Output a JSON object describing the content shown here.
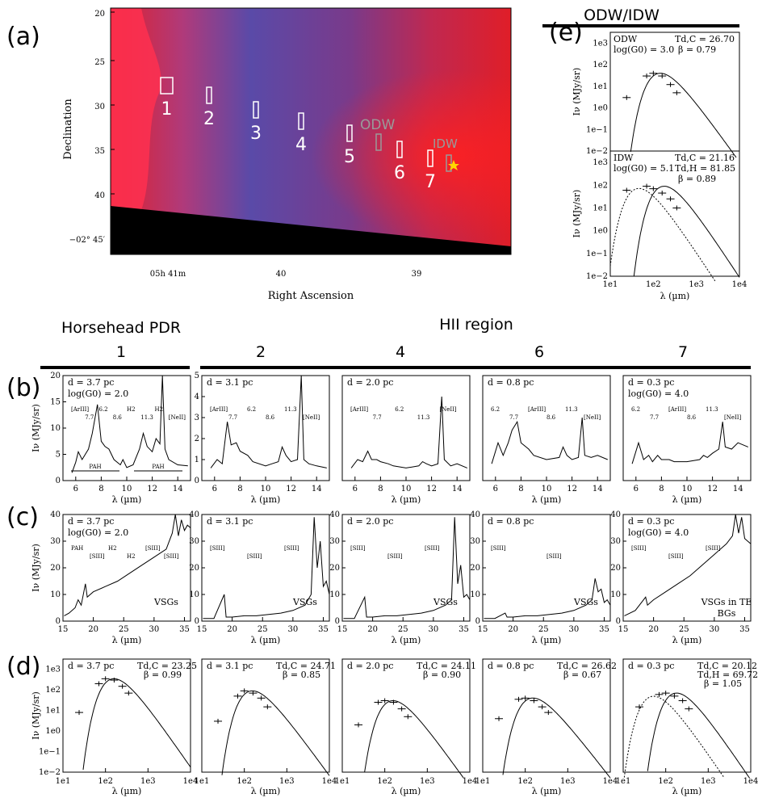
{
  "panel_letters": {
    "a": "(a)",
    "b": "(b)",
    "c": "(c)",
    "d": "(d)",
    "e": "(e)"
  },
  "image_panel": {
    "ylabel": "Declination",
    "xlabel": "Right Ascension",
    "y_ticks": [
      "20",
      "25",
      "30",
      "35",
      "40",
      "−02° 45′"
    ],
    "x_ticks": [
      "05h 41m",
      "40",
      "39"
    ],
    "region_labels": [
      "1",
      "2",
      "3",
      "4",
      "5",
      "6",
      "7"
    ],
    "odw_label": "ODW",
    "idw_label": "IDW"
  },
  "headers": {
    "pdr": "Horsehead PDR",
    "hii": "HII region",
    "numbers": [
      "1",
      "2",
      "4",
      "6",
      "7"
    ],
    "odw_idw": "ODW/IDW"
  },
  "colors": {
    "nebula_red": "#e0202a",
    "nebula_blue": "#6a5bb0",
    "odw_box": "#9a9a9a",
    "star": "#ffd700"
  },
  "chart_data": [
    {
      "type": "line",
      "title": "(b) mid-IR spectra 5-15 µm",
      "xlabel": "λ (µm)",
      "ylabel": "Iν (MJy/sr)",
      "xlim": [
        5,
        15
      ],
      "x_ticks": [
        "6",
        "8",
        "10",
        "12",
        "14"
      ],
      "panels": [
        {
          "d": "d = 3.7 pc",
          "g0": "log(G0) = 2.0",
          "ylim": [
            0,
            20
          ],
          "y_ticks": [
            "0",
            "5",
            "10",
            "15",
            "20"
          ],
          "lines": [
            "[ArIII]",
            "7.7",
            "6.2",
            "8.6",
            "H2",
            "11.3",
            "H2",
            "[NeII]"
          ],
          "bars": [
            "PAH",
            "PAH"
          ],
          "x": [
            5.7,
            6.0,
            6.2,
            6.5,
            7.0,
            7.3,
            7.7,
            8.0,
            8.3,
            8.6,
            9.0,
            9.5,
            9.7,
            10.0,
            10.5,
            11.0,
            11.3,
            11.6,
            12.0,
            12.3,
            12.6,
            12.8,
            13.0,
            13.3,
            14.0,
            14.8
          ],
          "y": [
            1.5,
            3.5,
            5.5,
            4.0,
            6.0,
            9.0,
            14.5,
            7.5,
            6.5,
            6.0,
            4.0,
            3.0,
            4.0,
            2.5,
            3.0,
            6.0,
            9.0,
            6.5,
            5.5,
            8.0,
            7.0,
            20.0,
            6.0,
            4.0,
            3.0,
            2.8
          ]
        },
        {
          "d": "d = 3.1 pc",
          "ylim": [
            0,
            5
          ],
          "y_ticks": [
            "0",
            "1",
            "2",
            "3",
            "4",
            "5"
          ],
          "lines": [
            "[ArIII]",
            "7.7",
            "6.2",
            "8.6",
            "11.3",
            "[NeII]"
          ],
          "x": [
            5.7,
            6.2,
            6.6,
            7.0,
            7.3,
            7.7,
            8.0,
            8.6,
            9.0,
            10.0,
            10.5,
            11.0,
            11.3,
            11.6,
            12.0,
            12.5,
            12.8,
            13.0,
            13.4,
            14.0,
            14.8
          ],
          "y": [
            0.6,
            1.0,
            0.8,
            2.8,
            1.7,
            1.8,
            1.4,
            1.2,
            0.9,
            0.7,
            0.8,
            0.9,
            1.6,
            1.2,
            0.9,
            1.0,
            5.0,
            1.0,
            0.8,
            0.7,
            0.6
          ]
        },
        {
          "d": "d = 2.0 pc",
          "lines": [
            "[ArIII]",
            "7.7",
            "6.2",
            "11.3",
            "[NeII]"
          ],
          "x": [
            5.7,
            6.2,
            6.6,
            7.0,
            7.3,
            7.7,
            8.0,
            8.6,
            9.0,
            10.0,
            11.0,
            11.3,
            11.6,
            12.0,
            12.5,
            12.8,
            13.0,
            13.5,
            14.0,
            14.8
          ],
          "y": [
            0.6,
            1.0,
            0.9,
            1.4,
            1.0,
            1.0,
            0.9,
            0.8,
            0.7,
            0.6,
            0.7,
            0.9,
            0.8,
            0.7,
            0.8,
            4.0,
            1.0,
            0.7,
            0.8,
            0.6
          ]
        },
        {
          "d": "d = 0.8 pc",
          "lines": [
            "6.2",
            "7.7",
            "[ArIII]",
            "8.6",
            "11.3",
            "[NeII]"
          ],
          "x": [
            5.7,
            6.2,
            6.6,
            7.0,
            7.3,
            7.7,
            8.0,
            8.6,
            9.0,
            10.0,
            11.0,
            11.3,
            11.6,
            12.0,
            12.5,
            12.8,
            13.0,
            13.5,
            14.0,
            14.8
          ],
          "y": [
            0.8,
            1.8,
            1.2,
            1.8,
            2.4,
            2.8,
            1.8,
            1.5,
            1.2,
            1.0,
            1.1,
            1.6,
            1.2,
            1.0,
            1.1,
            3.0,
            1.2,
            1.1,
            1.2,
            1.0
          ]
        },
        {
          "d": "d = 0.3 pc",
          "g0": "log(G0) = 4.0",
          "lines": [
            "6.2",
            "7.7",
            "[ArIII]",
            "8.6",
            "11.3",
            "[NeII]"
          ],
          "x": [
            5.7,
            6.2,
            6.6,
            7.0,
            7.3,
            7.7,
            8.0,
            8.6,
            9.0,
            10.0,
            11.0,
            11.3,
            11.6,
            12.0,
            12.5,
            12.8,
            13.0,
            13.5,
            14.0,
            14.8
          ],
          "y": [
            0.8,
            1.8,
            1.0,
            1.2,
            0.9,
            1.2,
            1.0,
            1.0,
            0.9,
            0.9,
            1.0,
            1.2,
            1.1,
            1.3,
            1.5,
            2.8,
            1.6,
            1.5,
            1.8,
            1.6
          ]
        }
      ]
    },
    {
      "type": "line",
      "title": "(c) spectra 15-36 µm",
      "xlabel": "λ (µm)",
      "ylabel": "Iν (MJy/sr)",
      "xlim": [
        15,
        36
      ],
      "x_ticks": [
        "15",
        "20",
        "25",
        "30",
        "35"
      ],
      "y_ticks": [
        "0",
        "10",
        "20",
        "30",
        "40"
      ],
      "ylim": [
        0,
        40
      ],
      "panels": [
        {
          "d": "d = 3.7 pc",
          "g0": "log(G0) = 2.0",
          "lines": [
            "PAH",
            "[SIII]",
            "H2",
            "H2",
            "[SIII]",
            "[SIII]"
          ],
          "note": "VSGs",
          "x": [
            15.2,
            16,
            17,
            17.5,
            18,
            18.7,
            19,
            20,
            22,
            24,
            26,
            28,
            30,
            32,
            33,
            33.5,
            34,
            34.5,
            35,
            35.5,
            36
          ],
          "y": [
            2,
            3,
            5,
            8,
            6,
            14,
            9,
            11,
            13,
            15,
            18,
            21,
            24,
            27,
            33,
            40,
            32,
            38,
            34,
            36,
            35
          ]
        },
        {
          "d": "d = 3.1 pc",
          "lines": [
            "[SIII]",
            "[SIII]",
            "[SIII]"
          ],
          "note": "VSGs",
          "x": [
            15.2,
            17,
            18.7,
            19,
            20,
            22,
            24,
            26,
            28,
            30,
            32,
            33,
            33.5,
            34,
            34.5,
            35,
            35.5,
            36
          ],
          "y": [
            1,
            1,
            10,
            1.5,
            1.5,
            2,
            2,
            2.5,
            3,
            4,
            6,
            10,
            39,
            20,
            30,
            13,
            15,
            10
          ]
        },
        {
          "d": "d = 2.0 pc",
          "lines": [
            "[SIII]",
            "[SIII]",
            "[SIII]"
          ],
          "note": "VSGs",
          "x": [
            15.2,
            17,
            18.7,
            19,
            20,
            22,
            24,
            26,
            28,
            30,
            32,
            33,
            33.5,
            34,
            34.5,
            35,
            35.5,
            36
          ],
          "y": [
            1,
            1,
            9,
            1.5,
            1.5,
            2,
            2,
            2.5,
            3,
            4,
            6,
            8,
            39,
            14,
            21,
            9,
            10,
            8
          ]
        },
        {
          "d": "d = 0.8 pc",
          "lines": [
            "[SIII]",
            "[SIII]"
          ],
          "note": "VSGs",
          "x": [
            15.2,
            17,
            18.7,
            19,
            20,
            22,
            24,
            26,
            28,
            30,
            32,
            33,
            33.5,
            34,
            34.5,
            35,
            35.5,
            36
          ],
          "y": [
            1,
            1,
            3,
            1.5,
            1.5,
            2,
            2,
            2.5,
            3,
            4,
            6,
            8,
            16,
            11,
            12,
            7,
            8,
            6
          ]
        },
        {
          "d": "d = 0.3 pc",
          "g0": "log(G0) = 4.0",
          "lines": [
            "[SIII]",
            "[SIII]",
            "[SIII]"
          ],
          "note": "VSGs in TE",
          "note2": "BGs",
          "x": [
            15.2,
            17,
            18.7,
            19,
            20,
            22,
            24,
            26,
            28,
            30,
            32,
            33,
            33.5,
            34,
            34.5,
            35,
            35.5,
            36
          ],
          "y": [
            2,
            4,
            9,
            6,
            8,
            11,
            14,
            17,
            21,
            25,
            29,
            32,
            40,
            33,
            39,
            31,
            30,
            29
          ]
        }
      ]
    },
    {
      "type": "line",
      "title": "(d) SED fits",
      "xlabel": "λ (µm)",
      "ylabel": "Iν (MJy/sr)",
      "xscale": "log",
      "yscale": "log",
      "x_ticks": [
        "1e1",
        "1e2",
        "1e3",
        "1e4"
      ],
      "y_ticks": [
        "1e3",
        "1e2",
        "1e1",
        "1e0",
        "1e−1",
        "1e−2"
      ],
      "panels": [
        {
          "d": "d = 3.7 pc",
          "T": "Td,C = 23.25",
          "beta": "β = 0.99",
          "points": [
            [
              24,
              8
            ],
            [
              70,
              200
            ],
            [
              100,
              350
            ],
            [
              160,
              300
            ],
            [
              250,
              150
            ],
            [
              350,
              70
            ]
          ]
        },
        {
          "d": "d = 3.1 pc",
          "T": "Td,C = 24.71",
          "beta": "β = 0.85",
          "points": [
            [
              24,
              3
            ],
            [
              70,
              50
            ],
            [
              100,
              90
            ],
            [
              160,
              70
            ],
            [
              250,
              40
            ],
            [
              350,
              15
            ]
          ]
        },
        {
          "d": "d = 2.0 pc",
          "T": "Td,C = 24.11",
          "beta": "β = 0.90",
          "points": [
            [
              24,
              2
            ],
            [
              70,
              25
            ],
            [
              100,
              30
            ],
            [
              160,
              25
            ],
            [
              250,
              12
            ],
            [
              350,
              5
            ]
          ]
        },
        {
          "d": "d = 0.8 pc",
          "T": "Td,C = 26.62",
          "beta": "β = 0.67",
          "points": [
            [
              24,
              4
            ],
            [
              70,
              35
            ],
            [
              100,
              40
            ],
            [
              160,
              30
            ],
            [
              250,
              15
            ],
            [
              350,
              8
            ]
          ]
        },
        {
          "d": "d = 0.3 pc",
          "T": "Td,C = 20.12",
          "T2": "Td,H = 69.72",
          "beta": "β = 1.05",
          "points": [
            [
              24,
              15
            ],
            [
              70,
              60
            ],
            [
              100,
              70
            ],
            [
              160,
              50
            ],
            [
              250,
              30
            ],
            [
              350,
              12
            ]
          ]
        }
      ]
    },
    {
      "type": "line",
      "title": "(e) ODW/IDW SED",
      "xlabel": "λ (µm)",
      "ylabel": "Iν (MJy/sr)",
      "x_ticks": [
        "1e1",
        "1e2",
        "1e3",
        "1e4"
      ],
      "y_ticks": [
        "1e3",
        "1e2",
        "1e1",
        "1e0",
        "1e−1",
        "1e−2"
      ],
      "panels": [
        {
          "name": "ODW",
          "g0": "log(G0) = 3.0",
          "T": "Td,C = 26.70",
          "beta": "β = 0.79",
          "points": [
            [
              24,
              3
            ],
            [
              70,
              30
            ],
            [
              100,
              40
            ],
            [
              160,
              30
            ],
            [
              250,
              12
            ],
            [
              350,
              5
            ]
          ]
        },
        {
          "name": "IDW",
          "g0": "log(G0) = 5.1",
          "T": "Td,C = 21.16",
          "T2": "Td,H = 81.85",
          "beta": "β = 0.89",
          "points": [
            [
              24,
              60
            ],
            [
              70,
              90
            ],
            [
              100,
              70
            ],
            [
              160,
              45
            ],
            [
              250,
              25
            ],
            [
              350,
              10
            ]
          ]
        }
      ]
    }
  ]
}
